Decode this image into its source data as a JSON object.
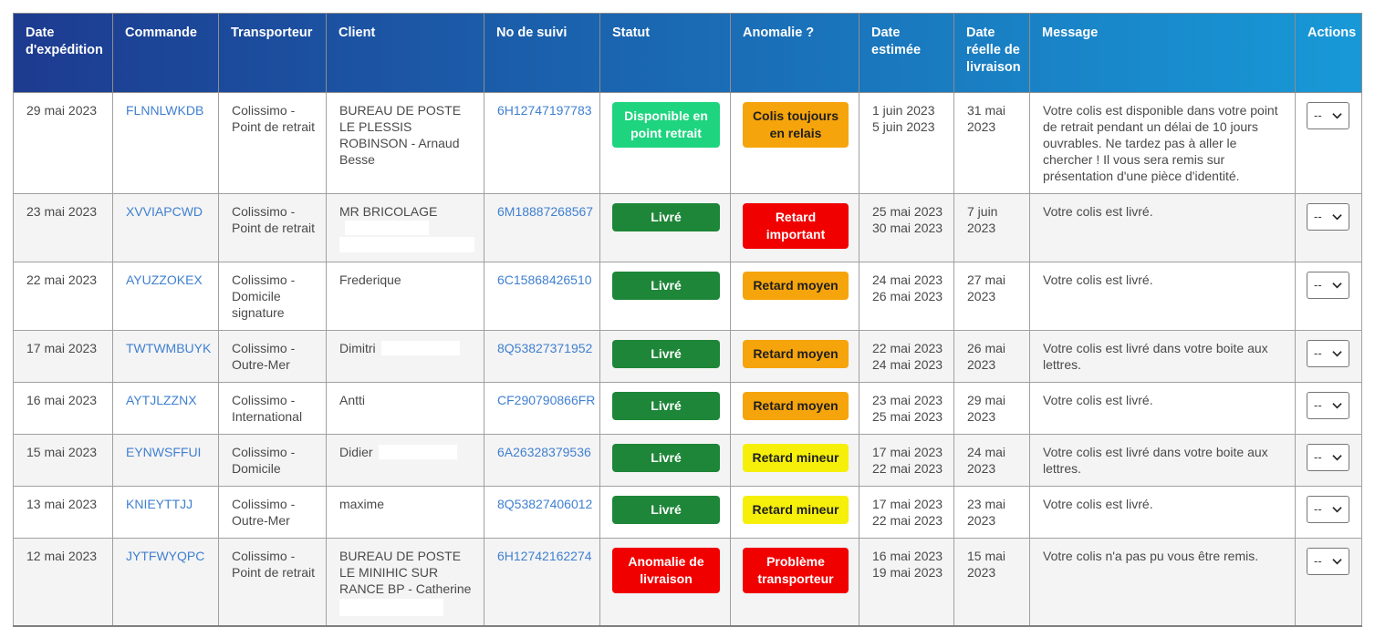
{
  "table": {
    "columns": [
      {
        "label": "Date d'expédition"
      },
      {
        "label": "Commande"
      },
      {
        "label": "Transporteur"
      },
      {
        "label": "Client"
      },
      {
        "label": "No de suivi"
      },
      {
        "label": "Statut"
      },
      {
        "label": "Anomalie ?"
      },
      {
        "label": "Date estimée"
      },
      {
        "label": "Date réelle de livraison"
      },
      {
        "label": "Message"
      },
      {
        "label": "Actions"
      }
    ],
    "rows": [
      {
        "date_expedition": "29 mai 2023",
        "commande": "FLNNLWKDB",
        "transporteur": "Colissimo - Point de retrait",
        "client": "BUREAU DE POSTE LE PLESSIS ROBINSON - Arnaud Besse",
        "no_suivi": "6H12747197783",
        "statut": {
          "label": "Disponible en point retrait",
          "variant": "mint"
        },
        "anomalie": {
          "label": "Colis toujours en relais",
          "variant": "orange"
        },
        "date_estimee": [
          "1 juin 2023",
          "5 juin 2023"
        ],
        "date_reelle": "31 mai 2023",
        "message": "Votre colis est disponible dans votre point de retrait pendant un délai de 10 jours ouvrables. Ne tardez pas à aller le chercher ! Il vous sera remis sur présentation d'une pièce d'identité.",
        "action": "--",
        "client_redaction": null
      },
      {
        "date_expedition": "23 mai 2023",
        "commande": "XVVIAPCWD",
        "transporteur": "Colissimo - Point de retrait",
        "client": "MR BRICOLAGE",
        "no_suivi": "6M18887268567",
        "statut": {
          "label": "Livré",
          "variant": "green"
        },
        "anomalie": {
          "label": "Retard important",
          "variant": "red"
        },
        "date_estimee": [
          "25 mai 2023",
          "30 mai 2023"
        ],
        "date_reelle": "7 juin 2023",
        "message": "Votre colis est livré.",
        "action": "--",
        "client_redaction": "inline-wide"
      },
      {
        "date_expedition": "22 mai 2023",
        "commande": "AYUZZOKEX",
        "transporteur": "Colissimo - Domicile signature",
        "client": "Frederique",
        "no_suivi": "6C15868426510",
        "statut": {
          "label": "Livré",
          "variant": "green"
        },
        "anomalie": {
          "label": "Retard moyen",
          "variant": "orange"
        },
        "date_estimee": [
          "24 mai 2023",
          "26 mai 2023"
        ],
        "date_reelle": "27 mai 2023",
        "message": "Votre colis est livré.",
        "action": "--",
        "client_redaction": null
      },
      {
        "date_expedition": "17 mai 2023",
        "commande": "TWTWMBUYK",
        "transporteur": "Colissimo - Outre-Mer",
        "client": "Dimitri",
        "no_suivi": "8Q53827371952",
        "statut": {
          "label": "Livré",
          "variant": "green"
        },
        "anomalie": {
          "label": "Retard moyen",
          "variant": "orange"
        },
        "date_estimee": [
          "22 mai 2023",
          "24 mai 2023"
        ],
        "date_reelle": "26 mai 2023",
        "message": "Votre colis est livré dans votre boite aux lettres.",
        "action": "--",
        "client_redaction": "inline"
      },
      {
        "date_expedition": "16 mai 2023",
        "commande": "AYTJLZZNX",
        "transporteur": "Colissimo - International",
        "client": "Antti",
        "no_suivi": "CF290790866FR",
        "statut": {
          "label": "Livré",
          "variant": "green"
        },
        "anomalie": {
          "label": "Retard moyen",
          "variant": "orange"
        },
        "date_estimee": [
          "23 mai 2023",
          "25 mai 2023"
        ],
        "date_reelle": "29 mai 2023",
        "message": "Votre colis est livré.",
        "action": "--",
        "client_redaction": null
      },
      {
        "date_expedition": "15 mai 2023",
        "commande": "EYNWSFFUI",
        "transporteur": "Colissimo - Domicile",
        "client": "Didier",
        "no_suivi": "6A26328379536",
        "statut": {
          "label": "Livré",
          "variant": "green"
        },
        "anomalie": {
          "label": "Retard mineur",
          "variant": "yellow"
        },
        "date_estimee": [
          "17 mai 2023",
          "22 mai 2023"
        ],
        "date_reelle": "24 mai 2023",
        "message": "Votre colis est livré dans votre boite aux lettres.",
        "action": "--",
        "client_redaction": "inline"
      },
      {
        "date_expedition": "13 mai 2023",
        "commande": "KNIEYTTJJ",
        "transporteur": "Colissimo - Outre-Mer",
        "client": "maxime",
        "no_suivi": "8Q53827406012",
        "statut": {
          "label": "Livré",
          "variant": "green"
        },
        "anomalie": {
          "label": "Retard mineur",
          "variant": "yellow"
        },
        "date_estimee": [
          "17 mai 2023",
          "22 mai 2023"
        ],
        "date_reelle": "23 mai 2023",
        "message": "Votre colis est livré.",
        "action": "--",
        "client_redaction": null
      },
      {
        "date_expedition": "12 mai 2023",
        "commande": "JYTFWYQPC",
        "transporteur": "Colissimo - Point de retrait",
        "client": "BUREAU DE POSTE LE MINIHIC SUR RANCE BP - Catherine",
        "no_suivi": "6H12742162274",
        "statut": {
          "label": "Anomalie de livraison",
          "variant": "red"
        },
        "anomalie": {
          "label": "Problème transporteur",
          "variant": "red"
        },
        "date_estimee": [
          "16 mai 2023",
          "19 mai 2023"
        ],
        "date_reelle": "15 mai 2023",
        "message": "Votre colis n'a pas pu vous être remis.",
        "action": "--",
        "client_redaction": "block"
      }
    ]
  },
  "colors": {
    "header_gradient_start": "#1d3b90",
    "header_gradient_end": "#1899d7",
    "status_available": "#1ed47f",
    "status_delivered": "#1e8638",
    "status_error": "#f10000",
    "anomaly_medium": "#f6a40b",
    "anomaly_minor": "#f5ef0a",
    "anomaly_major": "#f10000",
    "link": "#4080d0",
    "row_alt": "#f4f4f4"
  }
}
